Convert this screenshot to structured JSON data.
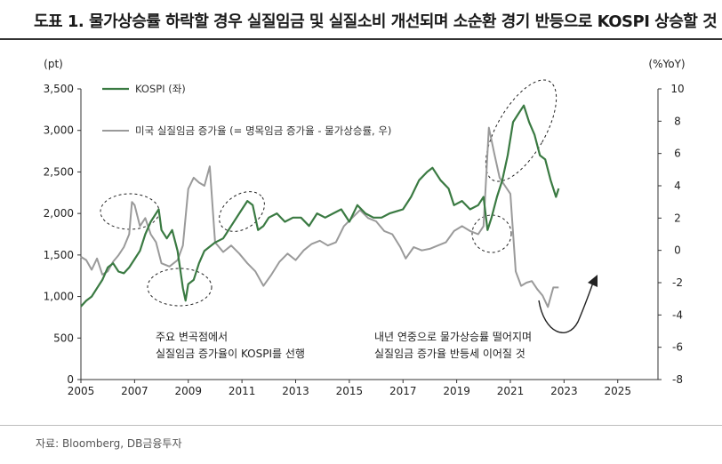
{
  "title": "도표 1. 물가상승률 하락할 경우 실질임금 및 실질소비 개선되며 소순환 경기 반등으로 KOSPI 상승할 것",
  "source": "자료: Bloomberg, DB금융투자",
  "colors": {
    "kospi": "#3a7a42",
    "wage": "#9a9a9a",
    "axis": "#333333",
    "arrow": "#222222"
  },
  "annotations": {
    "text1_line1": "주요 변곡점에서",
    "text1_line2": "실질임금 증가율이 KOSPI를 선행",
    "text2_line1": "내년 연중으로 물가상승률 떨어지며",
    "text2_line2": "실질임금 증가율 반등세 이어질 것"
  },
  "chart_data": {
    "type": "line",
    "x_axis": {
      "ticks": [
        "2005",
        "2007",
        "2009",
        "2011",
        "2013",
        "2015",
        "2017",
        "2019",
        "2021",
        "2023",
        "2025"
      ],
      "range": [
        2005,
        2026.5
      ]
    },
    "y_left": {
      "unit": "(pt)",
      "ticks": [
        "0",
        "500",
        "1,000",
        "1,500",
        "2,000",
        "2,500",
        "3,000",
        "3,500"
      ],
      "range": [
        0,
        3500
      ]
    },
    "y_right": {
      "unit": "(%YoY)",
      "ticks": [
        "-8",
        "-6",
        "-4",
        "-2",
        "0",
        "2",
        "4",
        "6",
        "8",
        "10"
      ],
      "range": [
        -8,
        10
      ]
    },
    "legend_placement": "top-left",
    "series": [
      {
        "name": "KOSPI (좌)",
        "axis": "left",
        "points": [
          [
            2005.0,
            880
          ],
          [
            2005.2,
            950
          ],
          [
            2005.4,
            1000
          ],
          [
            2005.6,
            1100
          ],
          [
            2005.8,
            1200
          ],
          [
            2006.0,
            1350
          ],
          [
            2006.2,
            1400
          ],
          [
            2006.4,
            1300
          ],
          [
            2006.6,
            1280
          ],
          [
            2006.8,
            1350
          ],
          [
            2007.0,
            1450
          ],
          [
            2007.2,
            1550
          ],
          [
            2007.4,
            1750
          ],
          [
            2007.6,
            1900
          ],
          [
            2007.8,
            2000
          ],
          [
            2007.9,
            2050
          ],
          [
            2008.0,
            1800
          ],
          [
            2008.2,
            1700
          ],
          [
            2008.4,
            1800
          ],
          [
            2008.6,
            1550
          ],
          [
            2008.8,
            1100
          ],
          [
            2008.9,
            950
          ],
          [
            2009.0,
            1150
          ],
          [
            2009.2,
            1200
          ],
          [
            2009.4,
            1400
          ],
          [
            2009.6,
            1550
          ],
          [
            2009.8,
            1600
          ],
          [
            2010.0,
            1650
          ],
          [
            2010.3,
            1700
          ],
          [
            2010.6,
            1850
          ],
          [
            2010.9,
            2000
          ],
          [
            2011.2,
            2150
          ],
          [
            2011.4,
            2100
          ],
          [
            2011.6,
            1800
          ],
          [
            2011.8,
            1850
          ],
          [
            2012.0,
            1950
          ],
          [
            2012.3,
            2000
          ],
          [
            2012.6,
            1900
          ],
          [
            2012.9,
            1950
          ],
          [
            2013.2,
            1950
          ],
          [
            2013.5,
            1850
          ],
          [
            2013.8,
            2000
          ],
          [
            2014.1,
            1950
          ],
          [
            2014.4,
            2000
          ],
          [
            2014.7,
            2050
          ],
          [
            2015.0,
            1900
          ],
          [
            2015.3,
            2100
          ],
          [
            2015.6,
            2000
          ],
          [
            2015.9,
            1950
          ],
          [
            2016.2,
            1950
          ],
          [
            2016.5,
            2000
          ],
          [
            2016.8,
            2030
          ],
          [
            2017.0,
            2050
          ],
          [
            2017.3,
            2200
          ],
          [
            2017.6,
            2400
          ],
          [
            2017.9,
            2500
          ],
          [
            2018.1,
            2550
          ],
          [
            2018.4,
            2400
          ],
          [
            2018.7,
            2300
          ],
          [
            2018.9,
            2100
          ],
          [
            2019.2,
            2150
          ],
          [
            2019.5,
            2050
          ],
          [
            2019.8,
            2100
          ],
          [
            2020.0,
            2200
          ],
          [
            2020.15,
            1800
          ],
          [
            2020.3,
            1950
          ],
          [
            2020.5,
            2200
          ],
          [
            2020.7,
            2400
          ],
          [
            2020.9,
            2700
          ],
          [
            2021.1,
            3100
          ],
          [
            2021.3,
            3200
          ],
          [
            2021.5,
            3300
          ],
          [
            2021.7,
            3100
          ],
          [
            2021.9,
            2950
          ],
          [
            2022.1,
            2700
          ],
          [
            2022.3,
            2650
          ],
          [
            2022.5,
            2400
          ],
          [
            2022.7,
            2200
          ],
          [
            2022.8,
            2300
          ]
        ]
      },
      {
        "name": "미국 실질임금 증가율 (= 명목임금 증가율 - 물가상승률, 우)",
        "axis": "right",
        "points": [
          [
            2005.0,
            -0.4
          ],
          [
            2005.2,
            -0.6
          ],
          [
            2005.4,
            -1.2
          ],
          [
            2005.6,
            -0.5
          ],
          [
            2005.8,
            -1.5
          ],
          [
            2006.0,
            -1.3
          ],
          [
            2006.2,
            -0.7
          ],
          [
            2006.4,
            -0.3
          ],
          [
            2006.6,
            0.2
          ],
          [
            2006.8,
            1.0
          ],
          [
            2006.9,
            3.0
          ],
          [
            2007.0,
            2.8
          ],
          [
            2007.2,
            1.5
          ],
          [
            2007.4,
            2.0
          ],
          [
            2007.6,
            1.0
          ],
          [
            2007.8,
            0.5
          ],
          [
            2008.0,
            -0.8
          ],
          [
            2008.3,
            -1.0
          ],
          [
            2008.6,
            -0.6
          ],
          [
            2008.8,
            0.3
          ],
          [
            2009.0,
            3.8
          ],
          [
            2009.2,
            4.5
          ],
          [
            2009.4,
            4.2
          ],
          [
            2009.6,
            4.0
          ],
          [
            2009.8,
            5.2
          ],
          [
            2010.0,
            0.5
          ],
          [
            2010.3,
            -0.1
          ],
          [
            2010.6,
            0.3
          ],
          [
            2010.9,
            -0.2
          ],
          [
            2011.2,
            -0.8
          ],
          [
            2011.5,
            -1.3
          ],
          [
            2011.8,
            -2.2
          ],
          [
            2012.1,
            -1.5
          ],
          [
            2012.4,
            -0.7
          ],
          [
            2012.7,
            -0.2
          ],
          [
            2013.0,
            -0.6
          ],
          [
            2013.3,
            0.0
          ],
          [
            2013.6,
            0.4
          ],
          [
            2013.9,
            0.6
          ],
          [
            2014.2,
            0.3
          ],
          [
            2014.5,
            0.5
          ],
          [
            2014.8,
            1.5
          ],
          [
            2015.1,
            2.0
          ],
          [
            2015.4,
            2.5
          ],
          [
            2015.7,
            2.0
          ],
          [
            2016.0,
            1.8
          ],
          [
            2016.3,
            1.2
          ],
          [
            2016.6,
            1.0
          ],
          [
            2016.9,
            0.2
          ],
          [
            2017.1,
            -0.5
          ],
          [
            2017.4,
            0.2
          ],
          [
            2017.7,
            0.0
          ],
          [
            2018.0,
            0.1
          ],
          [
            2018.3,
            0.3
          ],
          [
            2018.6,
            0.5
          ],
          [
            2018.9,
            1.2
          ],
          [
            2019.2,
            1.5
          ],
          [
            2019.5,
            1.2
          ],
          [
            2019.8,
            1.0
          ],
          [
            2020.0,
            1.5
          ],
          [
            2020.2,
            7.6
          ],
          [
            2020.4,
            6.0
          ],
          [
            2020.6,
            4.5
          ],
          [
            2020.8,
            4.0
          ],
          [
            2021.0,
            3.5
          ],
          [
            2021.2,
            -1.3
          ],
          [
            2021.4,
            -2.2
          ],
          [
            2021.6,
            -2.0
          ],
          [
            2021.8,
            -1.9
          ],
          [
            2022.0,
            -2.4
          ],
          [
            2022.2,
            -2.8
          ],
          [
            2022.4,
            -3.5
          ],
          [
            2022.6,
            -2.3
          ],
          [
            2022.8,
            -2.3
          ]
        ]
      }
    ]
  }
}
